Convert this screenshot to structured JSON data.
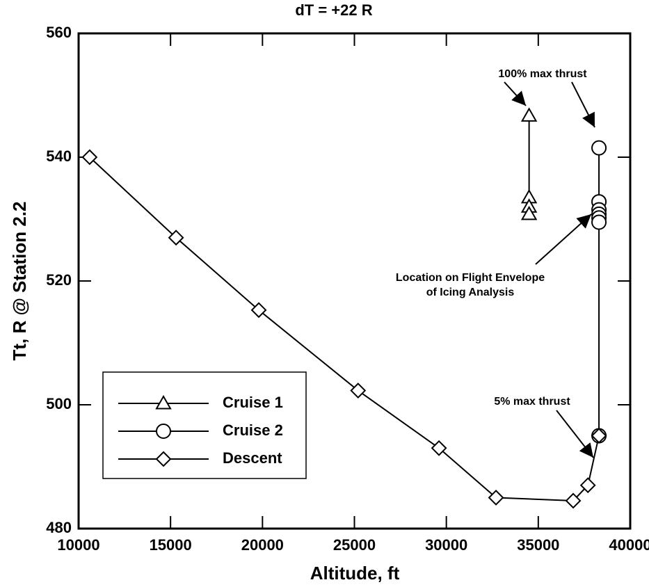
{
  "chart_data": {
    "type": "line",
    "title": "dT = +22 R",
    "x_label": "Altitude, ft",
    "y_label": "Tt, R @ Station 2.2",
    "xlim": [
      10000,
      40000
    ],
    "xticks": [
      10000,
      15000,
      20000,
      25000,
      30000,
      35000,
      40000
    ],
    "ylim": [
      480,
      560
    ],
    "yticks": [
      480,
      500,
      520,
      540,
      560
    ],
    "legend": "lower left",
    "series": [
      {
        "name": "Cruise 1",
        "color": "#000000",
        "marker": "triangle",
        "x": [
          34500,
          34500,
          34500,
          34500
        ],
        "values": [
          546.7,
          533.5,
          532,
          530.8
        ]
      },
      {
        "name": "Cruise 2",
        "color": "#000000",
        "marker": "circle",
        "x": [
          38300,
          38300,
          38300,
          38300,
          38300,
          38300,
          38300
        ],
        "values": [
          541.5,
          532.8,
          531.5,
          530.8,
          530.2,
          529.5,
          495
        ]
      },
      {
        "name": "Descent",
        "color": "#000000",
        "marker": "diamond",
        "x": [
          10600,
          15300,
          19800,
          25200,
          29600,
          32700,
          36900,
          37700,
          38300
        ],
        "values": [
          540,
          527,
          515.3,
          502.3,
          493,
          485,
          484.5,
          487,
          495
        ]
      }
    ],
    "annotations": [
      "100% max thrust",
      "Location on Flight Envelope",
      "of Icing Analysis",
      "5% max thrust"
    ]
  }
}
